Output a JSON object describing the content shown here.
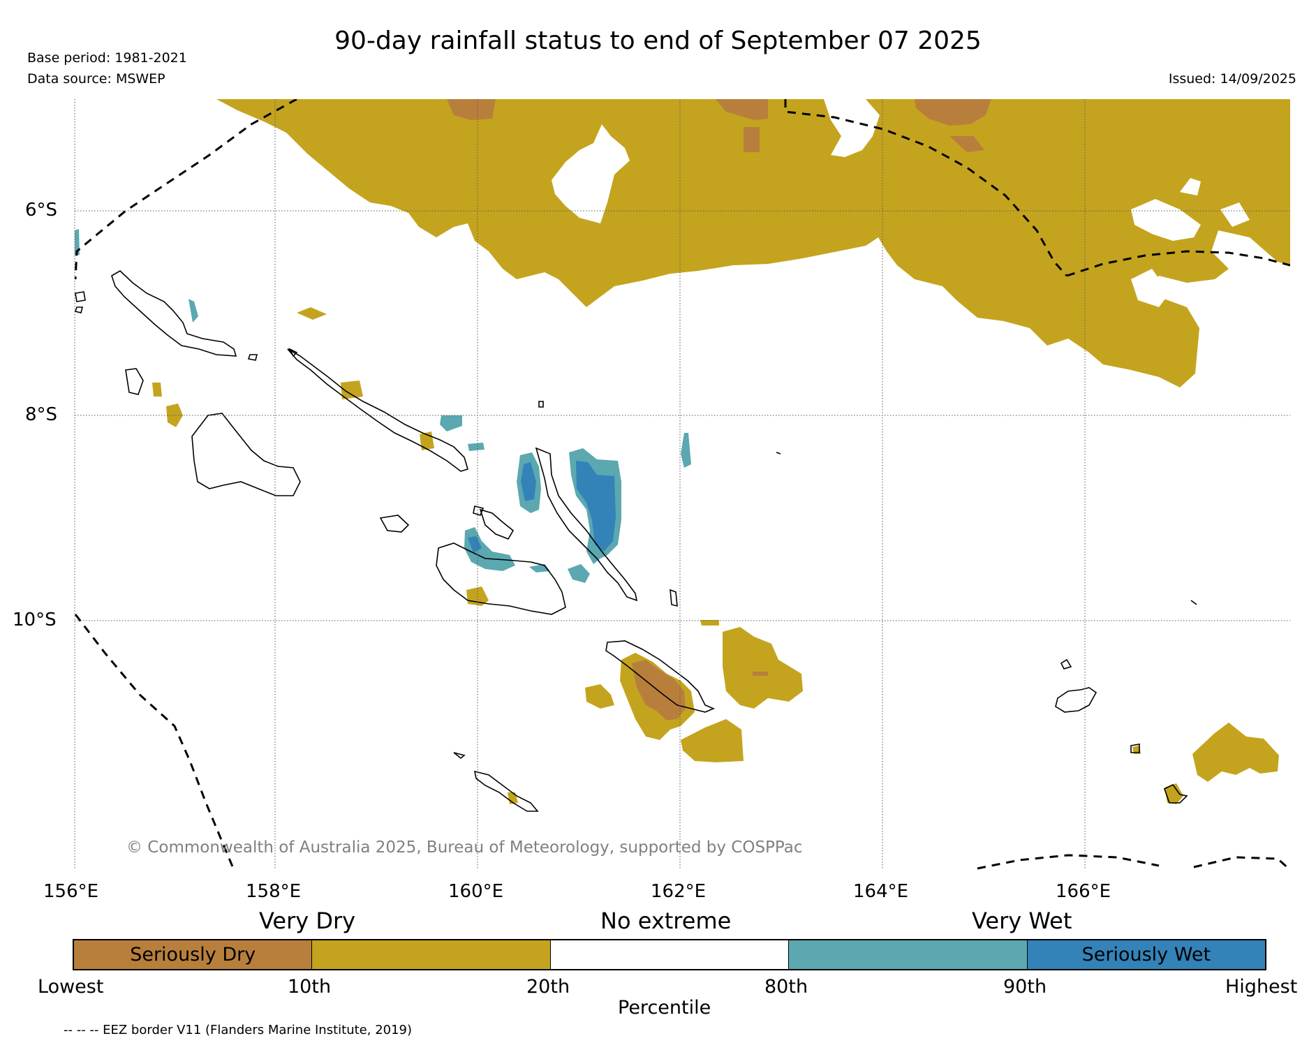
{
  "title": "90-day rainfall status to end of September 07 2025",
  "meta": {
    "base_period": "Base period: 1981-2021",
    "data_source": "Data source: MSWEP",
    "issued": "Issued: 14/09/2025"
  },
  "map": {
    "lat_labels": [
      "6°S",
      "8°S",
      "10°S"
    ],
    "lon_labels": [
      "156°E",
      "158°E",
      "160°E",
      "162°E",
      "164°E",
      "166°E"
    ],
    "copyright": "© Commonwealth of Australia 2025, Bureau of Meteorology, supported by COSPPac",
    "colors": {
      "seriously_dry": "#b87f3c",
      "very_dry": "#c4a41e",
      "very_wet": "#5ba8b0",
      "seriously_wet": "#3383b8",
      "coastline": "#000000",
      "grid": "#555555"
    }
  },
  "legend": {
    "categories": [
      "Very Dry",
      "No extreme",
      "Very Wet"
    ],
    "segments": [
      {
        "label": "Seriously Dry",
        "color": "#b87f3c"
      },
      {
        "label": "",
        "color": "#c4a41e"
      },
      {
        "label": "",
        "color": "#ffffff"
      },
      {
        "label": "",
        "color": "#5ba8b0"
      },
      {
        "label": "Seriously Wet",
        "color": "#3383b8"
      }
    ],
    "ticks": [
      "Lowest",
      "10th",
      "20th",
      "80th",
      "90th",
      "Highest"
    ],
    "axis_label": "Percentile"
  },
  "footnote": "-- -- -- EEZ border V11 (Flanders Marine Institute, 2019)"
}
